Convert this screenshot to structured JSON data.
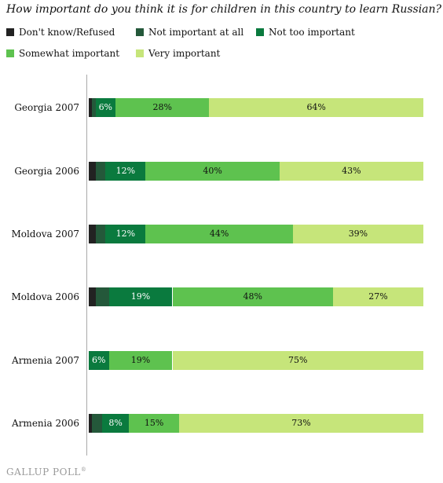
{
  "chart_data": {
    "type": "bar",
    "orientation": "horizontal",
    "stacked": true,
    "title": "How important do you think it is for children in this country to learn Russian?",
    "categories": [
      "Georgia 2007",
      "Georgia 2006",
      "Moldova 2007",
      "Moldova 2006",
      "Armenia 2007",
      "Armenia 2006"
    ],
    "xlim": [
      0,
      100
    ],
    "legend_position": "top",
    "series": [
      {
        "name": "Don't know/Refused",
        "color": "#222222",
        "text_color": "#ffffff",
        "values": [
          1,
          2,
          2,
          2,
          0,
          1
        ]
      },
      {
        "name": "Not important at all",
        "color": "#24583a",
        "text_color": "#ffffff",
        "values": [
          1,
          3,
          3,
          4,
          0,
          3
        ]
      },
      {
        "name": "Not too important",
        "color": "#0a7a3e",
        "text_color": "#ffffff",
        "values": [
          6,
          12,
          12,
          19,
          6,
          8
        ]
      },
      {
        "name": "Somewhat important",
        "color": "#5ec24f",
        "text_color": "#111111",
        "values": [
          28,
          40,
          44,
          48,
          19,
          15
        ]
      },
      {
        "name": "Very important",
        "color": "#c6e57a",
        "text_color": "#111111",
        "values": [
          64,
          43,
          39,
          27,
          75,
          73
        ]
      }
    ],
    "data_labels": [
      [
        null,
        null,
        "6%",
        "28%",
        "64%"
      ],
      [
        null,
        null,
        "12%",
        "40%",
        "43%"
      ],
      [
        null,
        null,
        "12%",
        "44%",
        "39%"
      ],
      [
        null,
        null,
        "19%",
        "48%",
        "27%"
      ],
      [
        null,
        null,
        "6%",
        "19%",
        "75%"
      ],
      [
        null,
        null,
        "8%",
        "15%",
        "73%"
      ]
    ]
  },
  "footer": {
    "logo_text": "GALLUP POLL",
    "logo_icon": "registered-mark"
  }
}
